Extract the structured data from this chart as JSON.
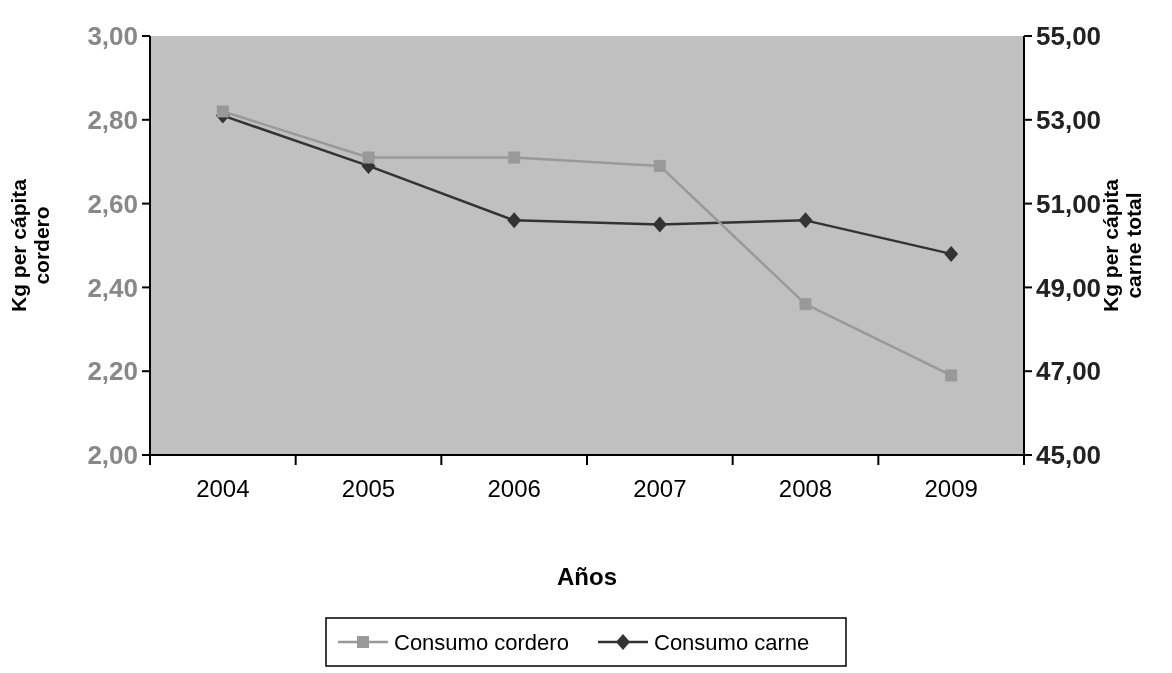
{
  "chart_data": {
    "type": "line",
    "xlabel": "Años",
    "ylabel": "Kg per cápita cordero",
    "y2label": "Kg per cápita carne total",
    "categories": [
      "2004",
      "2005",
      "2006",
      "2007",
      "2008",
      "2009"
    ],
    "series": [
      {
        "name": "Consumo cordero",
        "color": "#999999",
        "marker": "square",
        "values": [
          2.82,
          2.71,
          2.71,
          2.69,
          2.36,
          2.19
        ]
      },
      {
        "name": "Consumo carne",
        "color": "#333333",
        "marker": "diamond",
        "axis": "y2",
        "values": [
          53.1,
          51.9,
          50.6,
          50.5,
          50.6,
          49.8
        ]
      }
    ],
    "ylim": [
      2,
      3
    ],
    "yticks": [
      {
        "value": 2,
        "label": "2,00"
      },
      {
        "value": 2.2,
        "label": "2,20"
      },
      {
        "value": 2.4,
        "label": "2,40"
      },
      {
        "value": 2.6,
        "label": "2,60"
      },
      {
        "value": 2.8,
        "label": "2,80"
      },
      {
        "value": 3,
        "label": "3,00"
      }
    ],
    "y2lim": [
      45,
      55
    ],
    "y2ticks": [
      {
        "value": 45,
        "label": "45,00"
      },
      {
        "value": 47,
        "label": "47,00"
      },
      {
        "value": 49,
        "label": "49,00"
      },
      {
        "value": 51,
        "label": "51,00"
      },
      {
        "value": 53,
        "label": "53,00"
      },
      {
        "value": 55,
        "label": "55,00"
      }
    ],
    "grid": false,
    "legend": "bottom",
    "line_style": "solid"
  }
}
